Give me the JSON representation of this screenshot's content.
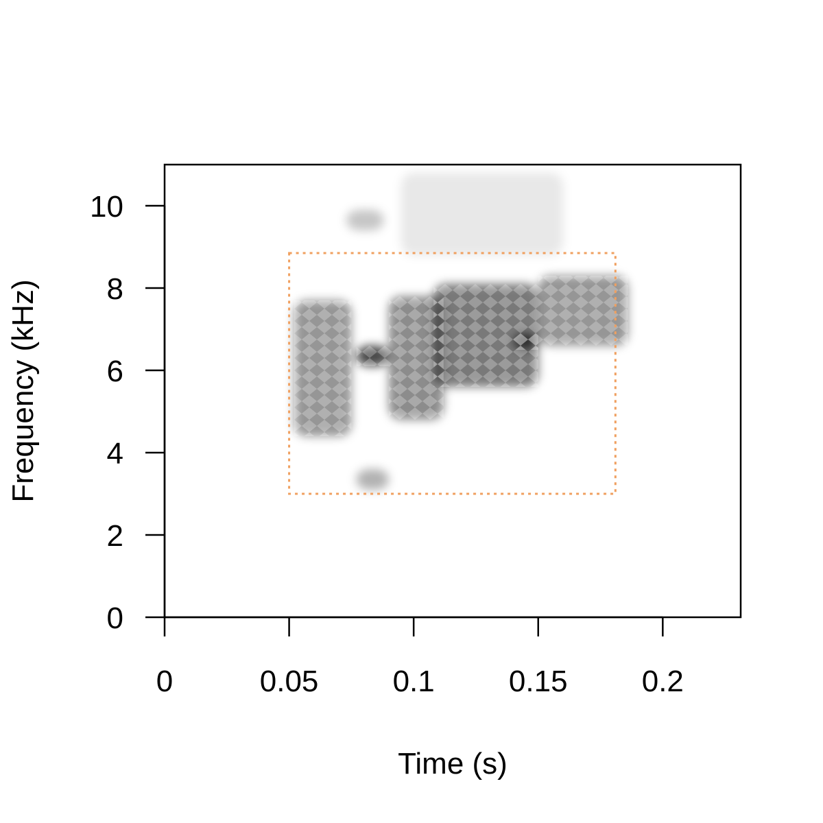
{
  "chart_data": {
    "type": "heatmap",
    "title": "",
    "xlabel": "Time (s)",
    "ylabel": "Frequency (kHz)",
    "xlim": [
      0,
      0.2313
    ],
    "ylim": [
      0,
      11
    ],
    "x_ticks": [
      0,
      0.05,
      0.1,
      0.15,
      0.2
    ],
    "x_tick_labels": [
      "0",
      "0.05",
      "0.1",
      "0.15",
      "0.2"
    ],
    "y_ticks": [
      0,
      2,
      4,
      6,
      8,
      10
    ],
    "y_tick_labels": [
      "0",
      "2",
      "4",
      "6",
      "8",
      "10"
    ],
    "grid": false,
    "colormap": "white-to-black (grayscale)",
    "selection_box": {
      "time_start": 0.05,
      "time_end": 0.181,
      "freq_low": 3.0,
      "freq_high": 8.85,
      "color": "#f0a060",
      "style": "dotted"
    },
    "energy_regions": [
      {
        "t": [
          0.052,
          0.075
        ],
        "f": [
          4.4,
          7.7
        ],
        "intensity": 0.55
      },
      {
        "t": [
          0.077,
          0.09
        ],
        "f": [
          6.1,
          6.6
        ],
        "intensity": 0.95
      },
      {
        "t": [
          0.09,
          0.112
        ],
        "f": [
          4.8,
          7.8
        ],
        "intensity": 0.6
      },
      {
        "t": [
          0.108,
          0.15
        ],
        "f": [
          5.6,
          8.1
        ],
        "intensity": 0.7
      },
      {
        "t": [
          0.14,
          0.15
        ],
        "f": [
          6.5,
          6.9
        ],
        "intensity": 0.85
      },
      {
        "t": [
          0.15,
          0.186
        ],
        "f": [
          6.6,
          8.3
        ],
        "intensity": 0.55
      },
      {
        "t": [
          0.077,
          0.09
        ],
        "f": [
          3.1,
          3.6
        ],
        "intensity": 0.4
      },
      {
        "t": [
          0.073,
          0.088
        ],
        "f": [
          9.4,
          9.9
        ],
        "intensity": 0.3
      },
      {
        "t": [
          0.095,
          0.16
        ],
        "f": [
          8.8,
          10.8
        ],
        "intensity": 0.12
      }
    ]
  }
}
